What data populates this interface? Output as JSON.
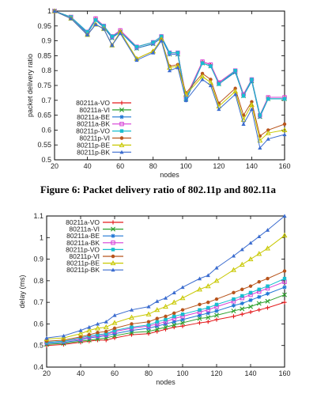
{
  "captions": {
    "figure6": "Figure 6: Packet delivery ratio of 802.11p and 802.11a"
  },
  "series_styles": [
    {
      "name": "80211a-VO",
      "color": "#e41a1c",
      "marker": "plus"
    },
    {
      "name": "80211a-VI",
      "color": "#2ca02c",
      "marker": "x"
    },
    {
      "name": "80211a-BE",
      "color": "#1f77d4",
      "marker": "star"
    },
    {
      "name": "80211a-BK",
      "color": "#d63fd6",
      "marker": "square"
    },
    {
      "name": "80211p-VO",
      "color": "#17becf",
      "marker": "square-filled"
    },
    {
      "name": "80211p-VI",
      "color": "#b8541c",
      "marker": "circle"
    },
    {
      "name": "80211p-BE",
      "color": "#c8c800",
      "marker": "triangle"
    },
    {
      "name": "80211p-BK",
      "color": "#3b6ccf",
      "marker": "triangle-filled"
    }
  ],
  "chart_data": [
    {
      "type": "line",
      "title": "",
      "xlabel": "nodes",
      "ylabel": "packet delivery ratio",
      "xlim": [
        20,
        160
      ],
      "ylim": [
        0.5,
        1.0
      ],
      "xticks": [
        20,
        40,
        60,
        80,
        100,
        120,
        140,
        160
      ],
      "yticks": [
        0.5,
        0.55,
        0.6,
        0.65,
        0.7,
        0.75,
        0.8,
        0.85,
        0.9,
        0.95,
        1
      ],
      "ytick_labels": [
        "0.5",
        "0.55",
        "0.6",
        "0.65",
        "0.7",
        "0.75",
        "0.8",
        "0.85",
        "0.9",
        "0.95",
        "1"
      ],
      "legend_position": "bottom-left",
      "x": [
        20,
        30,
        40,
        45,
        50,
        55,
        60,
        70,
        80,
        85,
        90,
        95,
        100,
        110,
        115,
        120,
        130,
        135,
        140,
        145,
        150,
        160
      ],
      "series": [
        {
          "name": "80211a-VO",
          "values": [
            1.0,
            0.98,
            0.93,
            0.975,
            0.95,
            0.915,
            0.935,
            0.88,
            0.895,
            0.915,
            0.86,
            0.86,
            0.71,
            0.83,
            0.82,
            0.76,
            0.8,
            0.72,
            0.77,
            0.65,
            0.71,
            0.71
          ]
        },
        {
          "name": "80211a-VI",
          "values": [
            1.0,
            0.98,
            0.925,
            0.97,
            0.945,
            0.91,
            0.93,
            0.875,
            0.89,
            0.91,
            0.855,
            0.855,
            0.705,
            0.825,
            0.815,
            0.755,
            0.795,
            0.715,
            0.765,
            0.645,
            0.705,
            0.705
          ]
        },
        {
          "name": "80211a-BE",
          "values": [
            1.0,
            0.98,
            0.925,
            0.97,
            0.945,
            0.91,
            0.93,
            0.875,
            0.89,
            0.91,
            0.855,
            0.855,
            0.7,
            0.825,
            0.815,
            0.755,
            0.795,
            0.715,
            0.765,
            0.645,
            0.705,
            0.705
          ]
        },
        {
          "name": "80211a-BK",
          "values": [
            1.0,
            0.98,
            0.93,
            0.975,
            0.95,
            0.915,
            0.935,
            0.88,
            0.895,
            0.915,
            0.86,
            0.86,
            0.71,
            0.83,
            0.82,
            0.76,
            0.8,
            0.72,
            0.77,
            0.65,
            0.71,
            0.71
          ]
        },
        {
          "name": "80211p-VO",
          "values": [
            1.0,
            0.98,
            0.93,
            0.97,
            0.95,
            0.915,
            0.93,
            0.88,
            0.895,
            0.915,
            0.86,
            0.86,
            0.705,
            0.825,
            0.815,
            0.755,
            0.8,
            0.715,
            0.77,
            0.65,
            0.705,
            0.705
          ]
        },
        {
          "name": "80211p-VI",
          "values": [
            1.0,
            0.975,
            0.92,
            0.955,
            0.94,
            0.885,
            0.93,
            0.84,
            0.865,
            0.905,
            0.815,
            0.82,
            0.725,
            0.79,
            0.77,
            0.69,
            0.74,
            0.65,
            0.695,
            0.58,
            0.6,
            0.62
          ]
        },
        {
          "name": "80211p-BE",
          "values": [
            1.0,
            0.975,
            0.92,
            0.955,
            0.94,
            0.885,
            0.93,
            0.84,
            0.865,
            0.905,
            0.81,
            0.815,
            0.72,
            0.78,
            0.76,
            0.68,
            0.73,
            0.635,
            0.685,
            0.565,
            0.59,
            0.6
          ]
        },
        {
          "name": "80211p-BK",
          "values": [
            1.0,
            0.975,
            0.92,
            0.955,
            0.94,
            0.885,
            0.925,
            0.835,
            0.86,
            0.9,
            0.8,
            0.81,
            0.7,
            0.77,
            0.75,
            0.67,
            0.72,
            0.62,
            0.67,
            0.54,
            0.57,
            0.585
          ]
        }
      ]
    },
    {
      "type": "line",
      "title": "",
      "xlabel": "nodes",
      "ylabel": "delay (ms)",
      "xlim": [
        20,
        160
      ],
      "ylim": [
        0.4,
        1.1
      ],
      "xticks": [
        20,
        40,
        60,
        80,
        100,
        120,
        140,
        160
      ],
      "yticks": [
        0.4,
        0.5,
        0.6,
        0.7,
        0.8,
        0.9,
        1.0,
        1.1
      ],
      "ytick_labels": [
        "0.4",
        "0.5",
        "0.6",
        "0.7",
        "0.8",
        "0.9",
        "1",
        "1.1"
      ],
      "legend_position": "top-left",
      "x": [
        20,
        30,
        40,
        45,
        50,
        55,
        60,
        70,
        80,
        85,
        90,
        95,
        100,
        110,
        115,
        120,
        130,
        135,
        140,
        145,
        150,
        160
      ],
      "series": [
        {
          "name": "80211a-VO",
          "values": [
            0.5,
            0.505,
            0.515,
            0.52,
            0.525,
            0.525,
            0.535,
            0.55,
            0.555,
            0.565,
            0.575,
            0.585,
            0.59,
            0.605,
            0.61,
            0.62,
            0.635,
            0.645,
            0.655,
            0.665,
            0.675,
            0.7
          ]
        },
        {
          "name": "80211a-VI",
          "values": [
            0.505,
            0.51,
            0.52,
            0.525,
            0.53,
            0.535,
            0.545,
            0.56,
            0.565,
            0.575,
            0.585,
            0.595,
            0.605,
            0.625,
            0.63,
            0.64,
            0.66,
            0.67,
            0.68,
            0.695,
            0.705,
            0.735
          ]
        },
        {
          "name": "80211a-BE",
          "values": [
            0.51,
            0.515,
            0.525,
            0.535,
            0.54,
            0.545,
            0.555,
            0.57,
            0.58,
            0.59,
            0.6,
            0.61,
            0.62,
            0.64,
            0.65,
            0.66,
            0.685,
            0.695,
            0.71,
            0.725,
            0.74,
            0.77
          ]
        },
        {
          "name": "80211a-BK",
          "values": [
            0.515,
            0.52,
            0.53,
            0.54,
            0.545,
            0.55,
            0.565,
            0.58,
            0.59,
            0.6,
            0.61,
            0.625,
            0.635,
            0.655,
            0.665,
            0.68,
            0.705,
            0.72,
            0.735,
            0.75,
            0.765,
            0.795
          ]
        },
        {
          "name": "80211p-VO",
          "values": [
            0.515,
            0.52,
            0.535,
            0.545,
            0.55,
            0.555,
            0.57,
            0.585,
            0.595,
            0.61,
            0.62,
            0.635,
            0.645,
            0.665,
            0.675,
            0.69,
            0.715,
            0.73,
            0.745,
            0.76,
            0.775,
            0.81
          ]
        },
        {
          "name": "80211p-VI",
          "values": [
            0.52,
            0.525,
            0.54,
            0.55,
            0.56,
            0.565,
            0.58,
            0.6,
            0.61,
            0.625,
            0.635,
            0.65,
            0.665,
            0.69,
            0.7,
            0.715,
            0.745,
            0.76,
            0.775,
            0.795,
            0.81,
            0.845
          ]
        },
        {
          "name": "80211p-BE",
          "values": [
            0.53,
            0.535,
            0.555,
            0.57,
            0.58,
            0.585,
            0.605,
            0.63,
            0.645,
            0.665,
            0.68,
            0.7,
            0.72,
            0.76,
            0.775,
            0.8,
            0.85,
            0.875,
            0.9,
            0.925,
            0.95,
            1.01
          ]
        },
        {
          "name": "80211p-BK",
          "values": [
            0.535,
            0.545,
            0.57,
            0.585,
            0.6,
            0.61,
            0.64,
            0.665,
            0.68,
            0.705,
            0.72,
            0.745,
            0.77,
            0.81,
            0.825,
            0.86,
            0.915,
            0.945,
            0.975,
            1.005,
            1.035,
            1.1
          ]
        }
      ]
    }
  ]
}
